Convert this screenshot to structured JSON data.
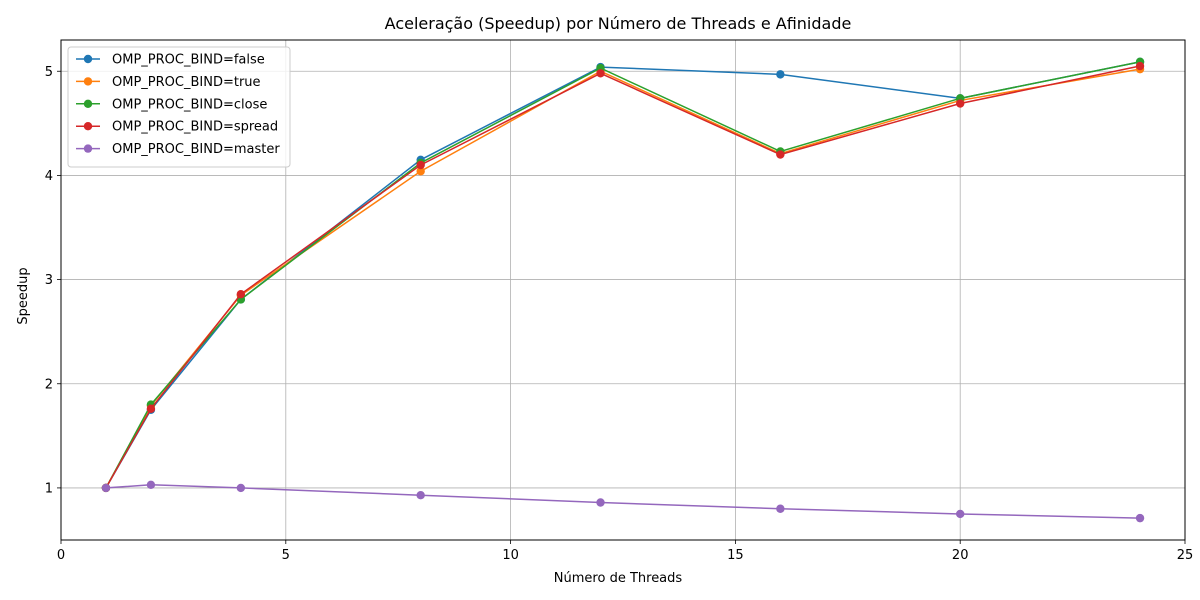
{
  "chart_data": {
    "type": "line",
    "title": "Aceleração (Speedup) por Número de Threads e Afinidade",
    "xlabel": "Número de Threads",
    "ylabel": "Speedup",
    "xlim": [
      0,
      25
    ],
    "ylim": [
      0.5,
      5.3
    ],
    "xticks": [
      0,
      5,
      10,
      15,
      20,
      25
    ],
    "yticks": [
      1,
      2,
      3,
      4,
      5
    ],
    "grid": true,
    "legend_position": "top-left",
    "x": [
      1,
      2,
      4,
      8,
      12,
      16,
      20,
      24
    ],
    "series": [
      {
        "name": "OMP_PROC_BIND=false",
        "color": "#1f77b4",
        "values": [
          1.0,
          1.75,
          2.81,
          4.15,
          5.04,
          4.97,
          4.74,
          5.09
        ]
      },
      {
        "name": "OMP_PROC_BIND=true",
        "color": "#ff7f0e",
        "values": [
          1.0,
          1.79,
          2.85,
          4.04,
          5.0,
          4.21,
          4.72,
          5.02
        ]
      },
      {
        "name": "OMP_PROC_BIND=close",
        "color": "#2ca02c",
        "values": [
          1.0,
          1.8,
          2.81,
          4.12,
          5.03,
          4.23,
          4.74,
          5.09
        ]
      },
      {
        "name": "OMP_PROC_BIND=spread",
        "color": "#d62728",
        "values": [
          1.0,
          1.76,
          2.86,
          4.1,
          4.98,
          4.2,
          4.69,
          5.05
        ]
      },
      {
        "name": "OMP_PROC_BIND=master",
        "color": "#9467bd",
        "values": [
          1.0,
          1.03,
          1.0,
          0.93,
          0.86,
          0.8,
          0.75,
          0.71
        ]
      }
    ]
  }
}
